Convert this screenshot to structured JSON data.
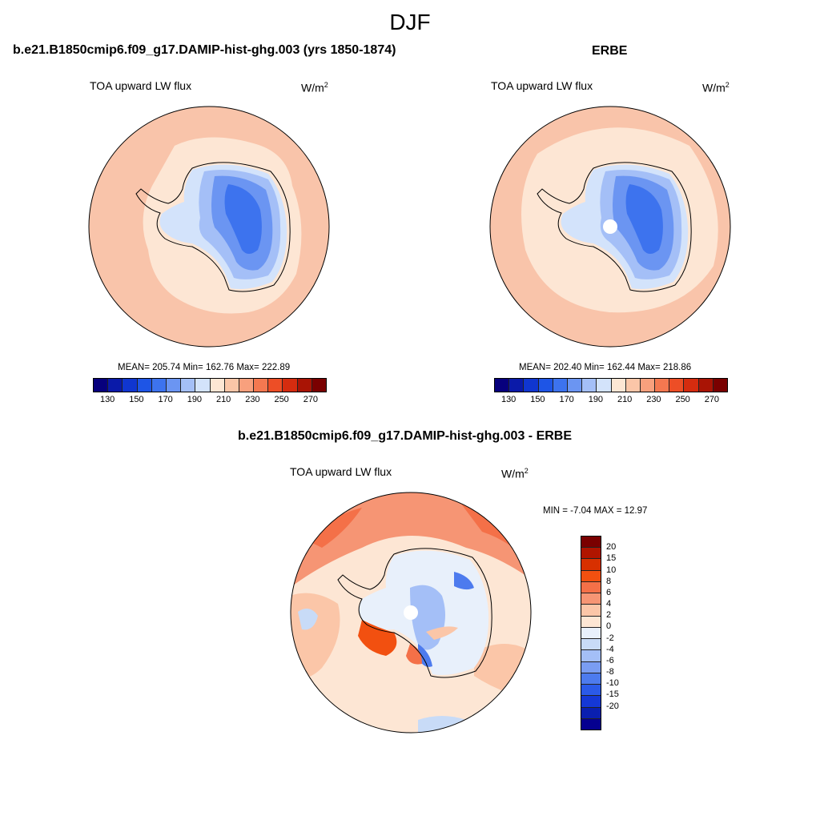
{
  "figure": {
    "title": "DJF"
  },
  "panel1": {
    "title": "b.e21.B1850cmip6.f09_g17.DAMIP-hist-ghg.003 (yrs 1850-1874)",
    "variable": "TOA upward LW flux",
    "units_base": "W/m",
    "units_exp": "2",
    "stats": "MEAN= 205.74  Min= 162.76  Max= 222.89"
  },
  "panel2": {
    "title": "ERBE",
    "variable": "TOA upward LW flux",
    "units_base": "W/m",
    "units_exp": "2",
    "stats": "MEAN= 202.40  Min= 162.44  Max= 218.86"
  },
  "panel3": {
    "title": "b.e21.B1850cmip6.f09_g17.DAMIP-hist-ghg.003 - ERBE",
    "variable": "TOA upward LW flux",
    "units": "W/m2",
    "stats": "MIN =  -7.04 MAX =  12.97"
  },
  "colorbar_abs": {
    "colors": [
      "#07007d",
      "#0a1aa9",
      "#1036d0",
      "#1e55e6",
      "#3d73ee",
      "#6b95f2",
      "#a4bff7",
      "#d3e3fb",
      "#fde6d4",
      "#fbc6a8",
      "#f8a07d",
      "#f47850",
      "#ed4e26",
      "#d52c0f",
      "#a91405",
      "#7a0000"
    ],
    "tick_labels": [
      "130",
      "150",
      "170",
      "190",
      "210",
      "230",
      "250",
      "270"
    ]
  },
  "colorbar_diff": {
    "colors": [
      "#7a0000",
      "#b01500",
      "#d83000",
      "#f25010",
      "#f47048",
      "#f69574",
      "#fbc6a8",
      "#fde6d4",
      "#e8f0fb",
      "#c8dbf7",
      "#a4bff7",
      "#7a9df2",
      "#4d7bee",
      "#2b5ae8",
      "#1538d6",
      "#0a1fb0",
      "#050090"
    ],
    "labels": [
      "20",
      "15",
      "10",
      "8",
      "6",
      "4",
      "2",
      "0",
      "-2",
      "-4",
      "-6",
      "-8",
      "-10",
      "-15",
      "-20"
    ]
  },
  "chart_data": [
    {
      "type": "heatmap",
      "title": "b.e21.B1850cmip6.f09_g17.DAMIP-hist-ghg.003 (yrs 1850-1874)",
      "variable": "TOA upward LW flux",
      "units": "W/m2",
      "projection": "south polar stereographic",
      "mean": 205.74,
      "min": 162.76,
      "max": 222.89,
      "levels": [
        130,
        140,
        150,
        160,
        170,
        180,
        190,
        200,
        210,
        220,
        230,
        240,
        250,
        260,
        270
      ]
    },
    {
      "type": "heatmap",
      "title": "ERBE",
      "variable": "TOA upward LW flux",
      "units": "W/m2",
      "projection": "south polar stereographic",
      "mean": 202.4,
      "min": 162.44,
      "max": 218.86,
      "levels": [
        130,
        140,
        150,
        160,
        170,
        180,
        190,
        200,
        210,
        220,
        230,
        240,
        250,
        260,
        270
      ]
    },
    {
      "type": "heatmap",
      "title": "b.e21.B1850cmip6.f09_g17.DAMIP-hist-ghg.003 - ERBE",
      "variable": "TOA upward LW flux",
      "units": "W/m2",
      "projection": "south polar stereographic",
      "min": -7.04,
      "max": 12.97,
      "levels": [
        -20,
        -15,
        -10,
        -8,
        -6,
        -4,
        -2,
        0,
        2,
        4,
        6,
        8,
        10,
        15,
        20
      ]
    }
  ]
}
